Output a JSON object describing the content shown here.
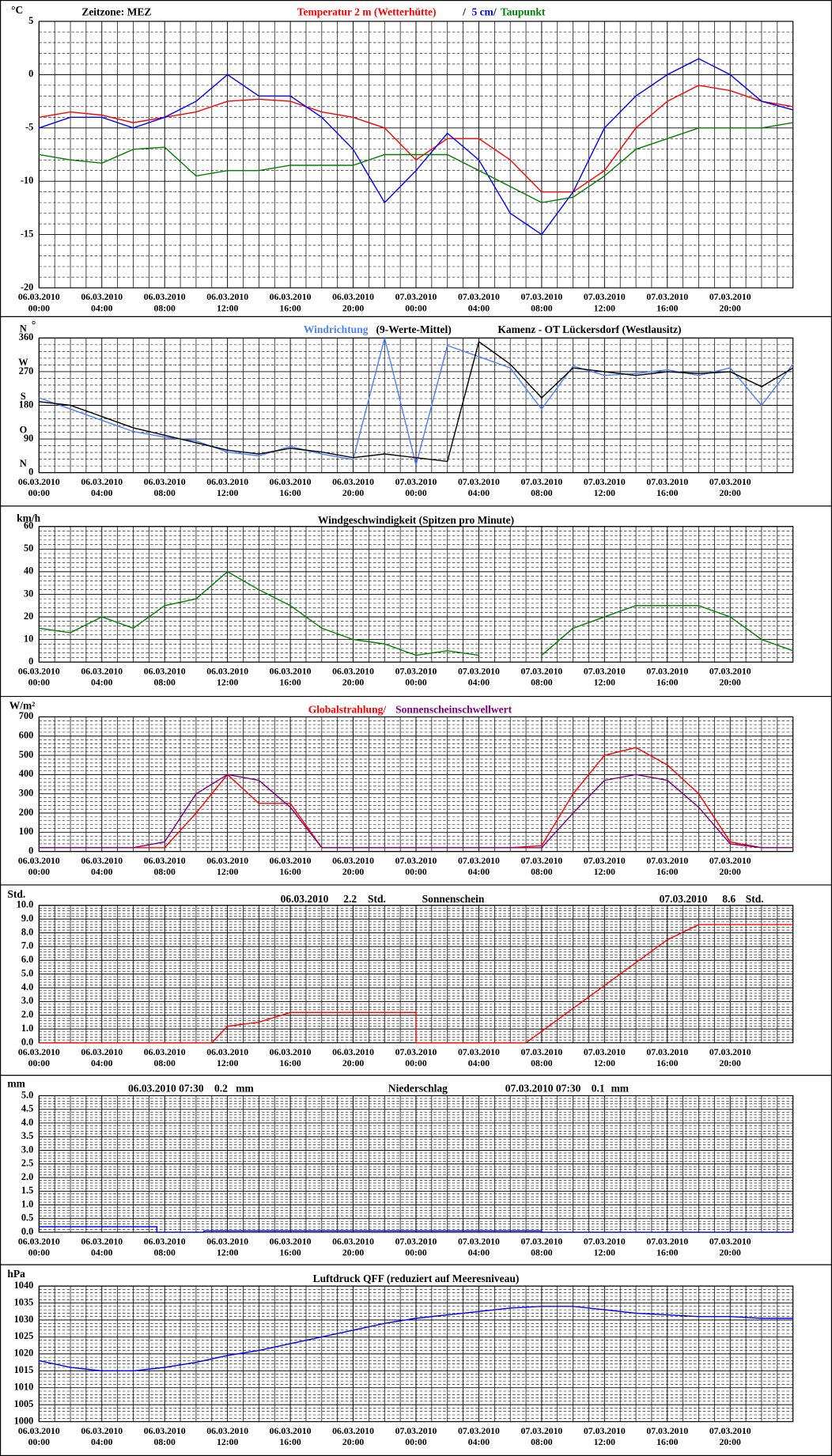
{
  "chart_data": [
    {
      "type": "line",
      "ylabel": "°C",
      "timezone": "Zeitzone: MEZ",
      "legend_separator": "/",
      "x": [
        0,
        2,
        4,
        6,
        8,
        10,
        12,
        14,
        16,
        18,
        20,
        22,
        24,
        26,
        28,
        30,
        32,
        34,
        36,
        38,
        40,
        42,
        44,
        46,
        48
      ],
      "series": [
        {
          "name": "Temperatur 2 m (Wetterhütte)",
          "color": "#ff0000",
          "values": [
            -4,
            -3.5,
            -3.8,
            -4.5,
            -4,
            -3.5,
            -2.5,
            -2.3,
            -2.5,
            -3.5,
            -4,
            -5,
            -8,
            -6,
            -6,
            -8,
            -11,
            -11,
            -9,
            -5,
            -2.5,
            -1,
            -1.5,
            -2.5,
            -3
          ]
        },
        {
          "name": "5 cm",
          "color": "#0000ff",
          "values": [
            -5,
            -4,
            -4,
            -5,
            -4,
            -2.5,
            0,
            -2,
            -2,
            -4,
            -7,
            -12,
            -9,
            -5.5,
            -8,
            -13,
            -15,
            -11,
            -5,
            -2,
            0,
            1.5,
            0,
            -2.5,
            -3.3
          ]
        },
        {
          "name": "Taupunkt",
          "color": "#008000",
          "values": [
            -7.5,
            -8,
            -8.3,
            -7,
            -6.8,
            -9.5,
            -9,
            -9,
            -8.5,
            -8.5,
            -8.5,
            -7.5,
            -7.5,
            -7.5,
            -9,
            -10.5,
            -12,
            -11.5,
            -9.5,
            -7,
            -6,
            -5,
            -5,
            -5,
            -4.5
          ]
        }
      ],
      "xlim": [
        0,
        48
      ],
      "xticks": [
        {
          "value": 0,
          "label": "06.03.2010\n00:00"
        },
        {
          "value": 4,
          "label": "06.03.2010\n04:00"
        },
        {
          "value": 8,
          "label": "06.03.2010\n08:00"
        },
        {
          "value": 12,
          "label": "06.03.2010\n12:00"
        },
        {
          "value": 16,
          "label": "06.03.2010\n16:00"
        },
        {
          "value": 20,
          "label": "06.03.2010\n20:00"
        },
        {
          "value": 24,
          "label": "07.03.2010\n00:00"
        },
        {
          "value": 28,
          "label": "07.03.2010\n04:00"
        },
        {
          "value": 32,
          "label": "07.03.2010\n08:00"
        },
        {
          "value": 36,
          "label": "07.03.2010\n12:00"
        },
        {
          "value": 40,
          "label": "07.03.2010\n16:00"
        },
        {
          "value": 44,
          "label": "07.03.2010\n20:00"
        }
      ],
      "ylim": [
        -20,
        5
      ],
      "yticks": [
        -20,
        -15,
        -10,
        -5,
        0,
        5
      ],
      "grid": true
    },
    {
      "type": "line",
      "ylabel": "°",
      "y_compass_labels": [
        "N",
        "O",
        "S",
        "W",
        "N"
      ],
      "station": "Kamenz - OT Lückersdorf (Westlausitz)",
      "x": [
        0,
        2,
        4,
        6,
        8,
        10,
        12,
        14,
        16,
        18,
        20,
        22,
        24,
        26,
        28,
        30,
        32,
        34,
        36,
        38,
        40,
        42,
        44,
        46,
        48
      ],
      "series": [
        {
          "name": "Windrichtung",
          "color": "#4d7fff",
          "values": [
            200,
            170,
            140,
            110,
            95,
            85,
            55,
            45,
            70,
            50,
            35,
            360,
            20,
            340,
            310,
            280,
            170,
            285,
            260,
            265,
            275,
            260,
            280,
            180,
            290
          ]
        },
        {
          "name": "(9-Werte-Mittel)",
          "color": "#000000",
          "values": [
            190,
            180,
            150,
            120,
            100,
            80,
            60,
            50,
            65,
            55,
            40,
            50,
            40,
            30,
            350,
            290,
            200,
            280,
            270,
            260,
            270,
            265,
            270,
            230,
            280
          ]
        }
      ],
      "xlim": [
        0,
        48
      ],
      "xticks": [
        {
          "value": 0,
          "label": "06.03.2010\n00:00"
        },
        {
          "value": 4,
          "label": "06.03.2010\n04:00"
        },
        {
          "value": 8,
          "label": "06.03.2010\n08:00"
        },
        {
          "value": 12,
          "label": "06.03.2010\n12:00"
        },
        {
          "value": 16,
          "label": "06.03.2010\n16:00"
        },
        {
          "value": 20,
          "label": "06.03.2010\n20:00"
        },
        {
          "value": 24,
          "label": "07.03.2010\n00:00"
        },
        {
          "value": 28,
          "label": "07.03.2010\n04:00"
        },
        {
          "value": 32,
          "label": "07.03.2010\n08:00"
        },
        {
          "value": 36,
          "label": "07.03.2010\n12:00"
        },
        {
          "value": 40,
          "label": "07.03.2010\n16:00"
        },
        {
          "value": 44,
          "label": "07.03.2010\n20:00"
        }
      ],
      "ylim": [
        0,
        360
      ],
      "yticks": [
        0,
        90,
        180,
        270,
        360
      ],
      "grid": true
    },
    {
      "type": "line",
      "ylabel": "km/h",
      "title": "Windgeschwindigkeit (Spitzen pro Minute)",
      "x": [
        0,
        2,
        4,
        6,
        8,
        10,
        12,
        14,
        16,
        18,
        20,
        22,
        24,
        26,
        28,
        30,
        32,
        34,
        36,
        38,
        40,
        42,
        44,
        46,
        48
      ],
      "series": [
        {
          "color": "#008000",
          "values": [
            15,
            13,
            20,
            15,
            25,
            28,
            40,
            32,
            25,
            15,
            10,
            8,
            3,
            5,
            3,
            null,
            3,
            15,
            20,
            25,
            25,
            25,
            20,
            10,
            5
          ]
        }
      ],
      "xlim": [
        0,
        48
      ],
      "xticks": [
        {
          "value": 0,
          "label": "06.03.2010\n00:00"
        },
        {
          "value": 4,
          "label": "06.03.2010\n04:00"
        },
        {
          "value": 8,
          "label": "06.03.2010\n08:00"
        },
        {
          "value": 12,
          "label": "06.03.2010\n12:00"
        },
        {
          "value": 16,
          "label": "06.03.2010\n16:00"
        },
        {
          "value": 20,
          "label": "06.03.2010\n20:00"
        },
        {
          "value": 24,
          "label": "07.03.2010\n00:00"
        },
        {
          "value": 28,
          "label": "07.03.2010\n04:00"
        },
        {
          "value": 32,
          "label": "07.03.2010\n08:00"
        },
        {
          "value": 36,
          "label": "07.03.2010\n12:00"
        },
        {
          "value": 40,
          "label": "07.03.2010\n16:00"
        },
        {
          "value": 44,
          "label": "07.03.2010\n20:00"
        }
      ],
      "ylim": [
        0,
        60
      ],
      "yticks": [
        0,
        10,
        20,
        30,
        40,
        50,
        60
      ],
      "grid": true
    },
    {
      "type": "line",
      "ylabel": "W/m²",
      "x": [
        0,
        2,
        4,
        6,
        8,
        10,
        12,
        14,
        16,
        18,
        20,
        22,
        24,
        26,
        28,
        30,
        32,
        34,
        36,
        38,
        40,
        42,
        44,
        46,
        48
      ],
      "series": [
        {
          "name": "Globalstrahlung/",
          "color": "#ff0000",
          "values": [
            20,
            20,
            20,
            20,
            20,
            200,
            400,
            250,
            250,
            20,
            20,
            20,
            20,
            20,
            20,
            20,
            30,
            300,
            500,
            540,
            450,
            300,
            50,
            20,
            20
          ]
        },
        {
          "name": "Sonnenscheinschwellwert",
          "color": "#800080",
          "values": [
            20,
            20,
            20,
            20,
            50,
            300,
            400,
            370,
            230,
            20,
            20,
            20,
            20,
            20,
            20,
            20,
            20,
            200,
            370,
            400,
            370,
            230,
            40,
            20,
            20
          ]
        }
      ],
      "xlim": [
        0,
        48
      ],
      "xticks": [
        {
          "value": 0,
          "label": "06.03.2010\n00:00"
        },
        {
          "value": 4,
          "label": "06.03.2010\n04:00"
        },
        {
          "value": 8,
          "label": "06.03.2010\n08:00"
        },
        {
          "value": 12,
          "label": "06.03.2010\n12:00"
        },
        {
          "value": 16,
          "label": "06.03.2010\n16:00"
        },
        {
          "value": 20,
          "label": "06.03.2010\n20:00"
        },
        {
          "value": 24,
          "label": "07.03.2010\n00:00"
        },
        {
          "value": 28,
          "label": "07.03.2010\n04:00"
        },
        {
          "value": 32,
          "label": "07.03.2010\n08:00"
        },
        {
          "value": 36,
          "label": "07.03.2010\n12:00"
        },
        {
          "value": 40,
          "label": "07.03.2010\n16:00"
        },
        {
          "value": 44,
          "label": "07.03.2010\n20:00"
        }
      ],
      "ylim": [
        0,
        700
      ],
      "yticks": [
        0,
        100,
        200,
        300,
        400,
        500,
        600,
        700
      ],
      "grid": true
    },
    {
      "type": "line",
      "ylabel": "Std.",
      "title": "Sonnenschein",
      "annotations": [
        {
          "date": "06.03.2010",
          "value": 2.2,
          "unit": "Std."
        },
        {
          "date": "07.03.2010",
          "value": 8.6,
          "unit": "Std."
        }
      ],
      "x": [
        0,
        11,
        12,
        14,
        16,
        24,
        24,
        31,
        37,
        40,
        42,
        48
      ],
      "series": [
        {
          "color": "#ff0000",
          "values": [
            0,
            0,
            1.2,
            1.5,
            2.2,
            2.2,
            0,
            0,
            5,
            7.5,
            8.6,
            8.6
          ]
        }
      ],
      "xlim": [
        0,
        48
      ],
      "xticks": [
        {
          "value": 0,
          "label": "06.03.2010\n00:00"
        },
        {
          "value": 4,
          "label": "06.03.2010\n04:00"
        },
        {
          "value": 8,
          "label": "06.03.2010\n08:00"
        },
        {
          "value": 12,
          "label": "06.03.2010\n12:00"
        },
        {
          "value": 16,
          "label": "06.03.2010\n16:00"
        },
        {
          "value": 20,
          "label": "06.03.2010\n20:00"
        },
        {
          "value": 24,
          "label": "07.03.2010\n00:00"
        },
        {
          "value": 28,
          "label": "07.03.2010\n04:00"
        },
        {
          "value": 32,
          "label": "07.03.2010\n08:00"
        },
        {
          "value": 36,
          "label": "07.03.2010\n12:00"
        },
        {
          "value": 40,
          "label": "07.03.2010\n16:00"
        },
        {
          "value": 44,
          "label": "07.03.2010\n20:00"
        }
      ],
      "ylim": [
        0,
        10
      ],
      "yticks": [
        {
          "value": 0,
          "label": "0.0"
        },
        {
          "value": 1,
          "label": "1.0"
        },
        {
          "value": 2,
          "label": "2.0"
        },
        {
          "value": 3,
          "label": "3.0"
        },
        {
          "value": 4,
          "label": "4.0"
        },
        {
          "value": 5,
          "label": "5.0"
        },
        {
          "value": 6,
          "label": "6.0"
        },
        {
          "value": 7,
          "label": "7.0"
        },
        {
          "value": 8,
          "label": "8.0"
        },
        {
          "value": 9,
          "label": "9.0"
        },
        {
          "value": 10,
          "label": "10.0"
        }
      ],
      "grid": true
    },
    {
      "type": "line",
      "ylabel": "mm",
      "title": "Niederschlag",
      "annotations": [
        {
          "date": "06.03.2010 07:30",
          "value": 0.2,
          "unit": "mm"
        },
        {
          "date": "07.03.2010 07:30",
          "value": 0.1,
          "unit": "mm"
        }
      ],
      "x": [
        0,
        7.5,
        7.5,
        10.5,
        10.5,
        32,
        32,
        48
      ],
      "series": [
        {
          "color": "#0000ff",
          "values": [
            0.2,
            0.2,
            0,
            0,
            0.05,
            0.05,
            0,
            0
          ]
        }
      ],
      "xlim": [
        0,
        48
      ],
      "xticks": [
        {
          "value": 0,
          "label": "06.03.2010\n00:00"
        },
        {
          "value": 4,
          "label": "06.03.2010\n04:00"
        },
        {
          "value": 8,
          "label": "06.03.2010\n08:00"
        },
        {
          "value": 12,
          "label": "06.03.2010\n12:00"
        },
        {
          "value": 16,
          "label": "06.03.2010\n16:00"
        },
        {
          "value": 20,
          "label": "06.03.2010\n20:00"
        },
        {
          "value": 24,
          "label": "07.03.2010\n00:00"
        },
        {
          "value": 28,
          "label": "07.03.2010\n04:00"
        },
        {
          "value": 32,
          "label": "07.03.2010\n08:00"
        },
        {
          "value": 36,
          "label": "07.03.2010\n12:00"
        },
        {
          "value": 40,
          "label": "07.03.2010\n16:00"
        },
        {
          "value": 44,
          "label": "07.03.2010\n20:00"
        }
      ],
      "ylim": [
        0,
        5
      ],
      "yticks": [
        {
          "value": 0,
          "label": "0.0"
        },
        {
          "value": 0.5,
          "label": "0.5"
        },
        {
          "value": 1,
          "label": "1.0"
        },
        {
          "value": 1.5,
          "label": "1.5"
        },
        {
          "value": 2,
          "label": "2.0"
        },
        {
          "value": 2.5,
          "label": "2.5"
        },
        {
          "value": 3,
          "label": "3.0"
        },
        {
          "value": 3.5,
          "label": "3.5"
        },
        {
          "value": 4,
          "label": "4.0"
        },
        {
          "value": 4.5,
          "label": "4.5"
        },
        {
          "value": 5,
          "label": "5.0"
        }
      ],
      "grid": true
    },
    {
      "type": "line",
      "ylabel": "hPa",
      "title": "Luftdruck QFF (reduziert auf Meeresniveau)",
      "x": [
        0,
        2,
        4,
        6,
        8,
        10,
        12,
        14,
        16,
        18,
        20,
        22,
        24,
        26,
        28,
        30,
        32,
        34,
        36,
        38,
        40,
        42,
        44,
        46,
        48
      ],
      "series": [
        {
          "color": "#0000ff",
          "values": [
            1018,
            1016,
            1015,
            1015,
            1016,
            1017.5,
            1019.5,
            1021,
            1023,
            1025,
            1027,
            1029,
            1030.5,
            1031.5,
            1032.5,
            1033.5,
            1034,
            1034,
            1033,
            1032,
            1031.5,
            1031,
            1031,
            1030.5,
            1030.5
          ]
        }
      ],
      "xlim": [
        0,
        48
      ],
      "xticks": [
        {
          "value": 0,
          "label": "06.03.2010\n00:00"
        },
        {
          "value": 4,
          "label": "06.03.2010\n04:00"
        },
        {
          "value": 8,
          "label": "06.03.2010\n08:00"
        },
        {
          "value": 12,
          "label": "06.03.2010\n12:00"
        },
        {
          "value": 16,
          "label": "06.03.2010\n16:00"
        },
        {
          "value": 20,
          "label": "06.03.2010\n20:00"
        },
        {
          "value": 24,
          "label": "07.03.2010\n00:00"
        },
        {
          "value": 28,
          "label": "07.03.2010\n04:00"
        },
        {
          "value": 32,
          "label": "07.03.2010\n08:00"
        },
        {
          "value": 36,
          "label": "07.03.2010\n12:00"
        },
        {
          "value": 40,
          "label": "07.03.2010\n16:00"
        },
        {
          "value": 44,
          "label": "07.03.2010\n20:00"
        }
      ],
      "ylim": [
        1000,
        1040
      ],
      "yticks": [
        1000,
        1005,
        1010,
        1015,
        1020,
        1025,
        1030,
        1035,
        1040
      ],
      "grid": true
    }
  ]
}
